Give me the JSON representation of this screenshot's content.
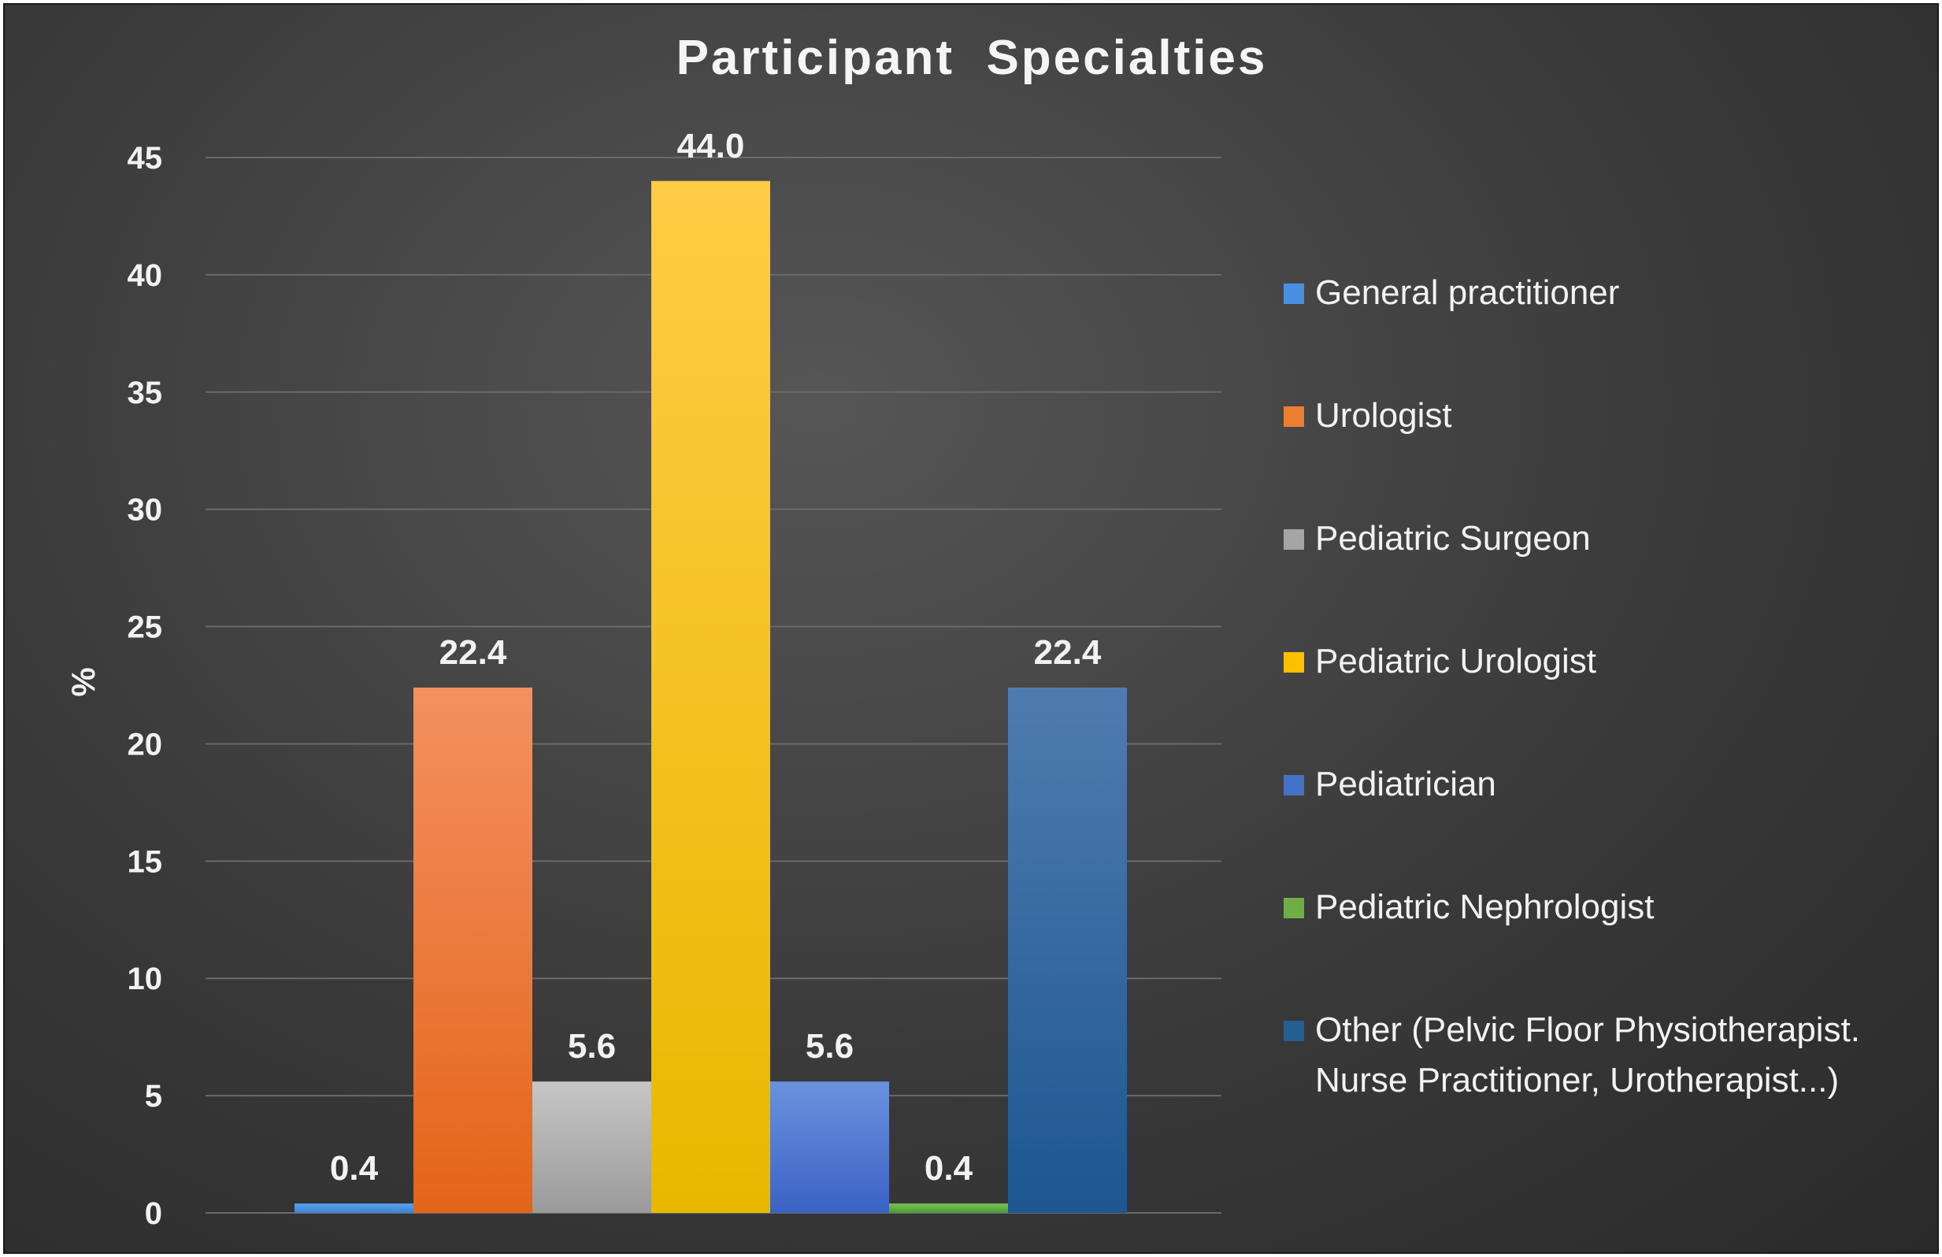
{
  "chart_data": {
    "type": "bar",
    "title": "Participant  Specialties",
    "ylabel": "%",
    "xlabel": "",
    "ylim": [
      0,
      45
    ],
    "yticks": [
      0,
      5,
      10,
      15,
      20,
      25,
      30,
      35,
      40,
      45
    ],
    "grid": true,
    "legend_position": "right",
    "categories": [
      "General practitioner",
      "Urologist",
      "Pediatric Surgeon",
      "Pediatric Urologist",
      "Pediatrician",
      "Pediatric Nephrologist",
      "Other (Pelvic Floor Physiotherapist. Nurse Practitioner, Urotherapist...)"
    ],
    "values": [
      0.4,
      22.4,
      5.6,
      44.0,
      5.6,
      0.4,
      22.4
    ],
    "value_labels": [
      "0.4",
      "22.4",
      "5.6",
      "44.0",
      "5.6",
      "0.4",
      "22.4"
    ],
    "legend_lines": [
      [
        "General practitioner"
      ],
      [
        "Urologist"
      ],
      [
        "Pediatric Surgeon"
      ],
      [
        "Pediatric Urologist"
      ],
      [
        "Pediatrician"
      ],
      [
        "Pediatric Nephrologist"
      ],
      [
        "Other (Pelvic Floor Physiotherapist.",
        "Nurse Practitioner, Urotherapist...)"
      ]
    ],
    "colors": [
      [
        "#5aa2ea",
        "#3b82d6"
      ],
      [
        "#f49060",
        "#e46418"
      ],
      [
        "#c6c6c6",
        "#9a9a9a"
      ],
      [
        "#ffcc44",
        "#e8b800"
      ],
      [
        "#6b92de",
        "#3a62c4"
      ],
      [
        "#7ac25a",
        "#4e9a32"
      ],
      [
        "#4f7cb0",
        "#1d5690"
      ]
    ],
    "legend_colors": [
      "#4a90e2",
      "#ed7d31",
      "#a5a5a5",
      "#ffc000",
      "#4472c4",
      "#70ad47",
      "#255e91"
    ]
  }
}
